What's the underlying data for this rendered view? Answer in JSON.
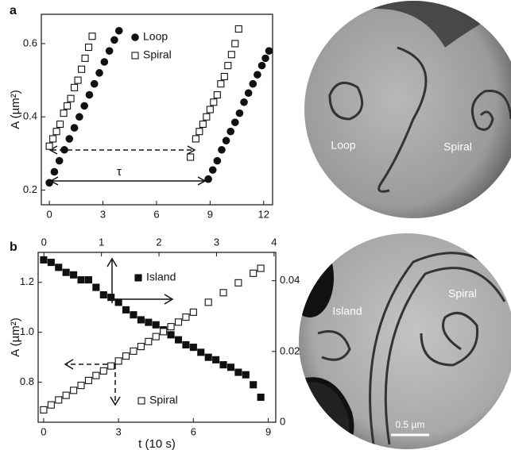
{
  "chart_data": [
    {
      "type": "scatter",
      "label": "a",
      "ylabel": "A (µm²)",
      "xlim": [
        -0.45,
        12.5
      ],
      "xticks": [
        0,
        3,
        6,
        9,
        12
      ],
      "ylim": [
        0.16,
        0.68
      ],
      "yticks": [
        0.2,
        0.4,
        0.6
      ],
      "annotations": [
        "τ"
      ],
      "series": [
        {
          "name": "Loop",
          "marker": "circle",
          "color": "#111111",
          "x": [
            0.0,
            0.28,
            0.56,
            0.84,
            1.12,
            1.4,
            1.68,
            1.96,
            2.24,
            2.52,
            2.8,
            3.08,
            3.36,
            3.64,
            3.9,
            8.9,
            9.15,
            9.4,
            9.65,
            9.9,
            10.15,
            10.4,
            10.65,
            10.9,
            11.15,
            11.4,
            11.65,
            11.9,
            12.1,
            12.3
          ],
          "values": [
            0.22,
            0.25,
            0.28,
            0.31,
            0.34,
            0.37,
            0.4,
            0.43,
            0.46,
            0.49,
            0.52,
            0.55,
            0.58,
            0.61,
            0.635,
            0.23,
            0.255,
            0.28,
            0.31,
            0.335,
            0.36,
            0.385,
            0.41,
            0.44,
            0.465,
            0.49,
            0.515,
            0.54,
            0.56,
            0.58
          ]
        },
        {
          "name": "Spiral",
          "marker": "open-square",
          "color": "#111111",
          "x": [
            0.0,
            0.2,
            0.4,
            0.6,
            0.8,
            1.0,
            1.2,
            1.4,
            1.6,
            1.8,
            2.0,
            2.2,
            2.4,
            7.9,
            8.2,
            8.4,
            8.6,
            8.8,
            9.0,
            9.2,
            9.4,
            9.6,
            9.8,
            10.0,
            10.2,
            10.4,
            10.6
          ],
          "values": [
            0.32,
            0.34,
            0.36,
            0.38,
            0.41,
            0.43,
            0.45,
            0.48,
            0.5,
            0.53,
            0.56,
            0.59,
            0.62,
            0.29,
            0.34,
            0.36,
            0.38,
            0.4,
            0.42,
            0.44,
            0.46,
            0.49,
            0.51,
            0.54,
            0.57,
            0.6,
            0.64
          ]
        }
      ]
    },
    {
      "type": "scatter",
      "label": "b",
      "ylabel": "A (µm²)",
      "xlabel": "t (10 s)",
      "xlim": [
        -0.22,
        9.3
      ],
      "xticks": [
        0,
        3,
        6,
        9
      ],
      "x2lim": [
        -0.1,
        4.03
      ],
      "x2ticks": [
        0,
        1,
        2,
        3,
        4
      ],
      "ylim": [
        0.64,
        1.32
      ],
      "yticks": [
        0.8,
        {
          "value": 1,
          "label": "1.0"
        },
        1.2
      ],
      "y2lim": [
        0,
        0.048
      ],
      "y2ticks": [
        0,
        0.02,
        0.04
      ],
      "series": [
        {
          "name": "Island",
          "marker": "filled-square",
          "color": "#111111",
          "x": [
            0,
            0.3,
            0.6,
            0.9,
            1.2,
            1.5,
            1.8,
            2.1,
            2.4,
            2.7,
            3.0,
            3.3,
            3.6,
            3.9,
            4.2,
            4.5,
            4.8,
            5.1,
            5.4,
            5.7,
            6.0,
            6.3,
            6.6,
            6.9,
            7.2,
            7.5,
            7.8,
            8.1,
            8.4,
            8.7
          ],
          "values": [
            1.29,
            1.28,
            1.26,
            1.24,
            1.23,
            1.21,
            1.21,
            1.18,
            1.15,
            1.14,
            1.12,
            1.09,
            1.07,
            1.05,
            1.04,
            1.03,
            1.01,
            0.99,
            0.97,
            0.95,
            0.94,
            0.92,
            0.9,
            0.89,
            0.87,
            0.86,
            0.84,
            0.83,
            0.79,
            0.74
          ]
        },
        {
          "name": "Spiral",
          "marker": "open-square",
          "color": "#111111",
          "axis": "y2",
          "x": [
            0,
            0.3,
            0.6,
            0.9,
            1.2,
            1.5,
            1.8,
            2.1,
            2.4,
            2.7,
            3.0,
            3.3,
            3.6,
            3.9,
            4.2,
            4.5,
            4.8,
            5.1,
            5.4,
            5.7,
            6.0,
            6.6,
            7.2,
            7.8,
            8.4,
            8.7
          ],
          "values": [
            0.0035,
            0.0049,
            0.0063,
            0.0076,
            0.009,
            0.0104,
            0.0118,
            0.0132,
            0.0145,
            0.0159,
            0.0173,
            0.0187,
            0.0201,
            0.0214,
            0.0228,
            0.0242,
            0.0256,
            0.027,
            0.0283,
            0.0297,
            0.0311,
            0.0339,
            0.0366,
            0.0394,
            0.0421,
            0.0435
          ]
        }
      ]
    }
  ],
  "images": [
    {
      "labels": [
        "Loop",
        "Spiral"
      ]
    },
    {
      "labels": [
        "Island",
        "Spiral"
      ],
      "scale_bar": "0.5 µm"
    }
  ]
}
